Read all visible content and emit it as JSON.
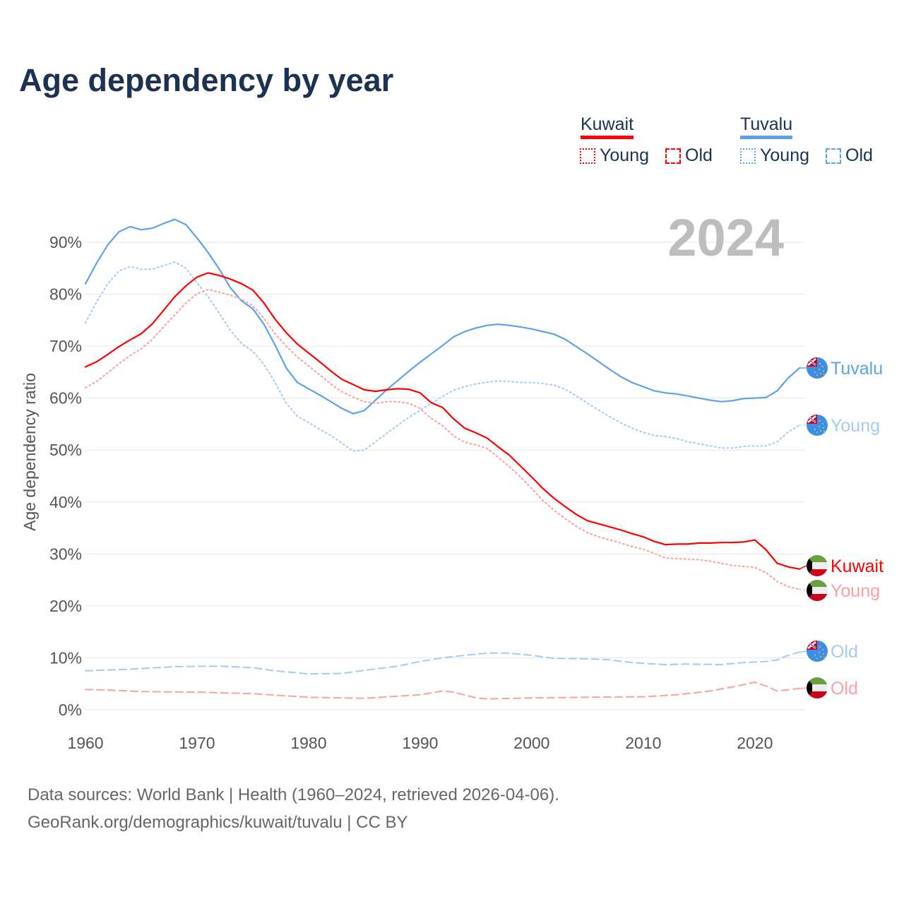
{
  "title": "Age dependency by year",
  "legend": {
    "groups": [
      {
        "name": "Kuwait",
        "color": "#ff0000",
        "items": [
          "Young",
          "Old"
        ]
      },
      {
        "name": "Tuvalu",
        "color": "#5aa3ea",
        "items": [
          "Young",
          "Old"
        ]
      }
    ]
  },
  "year_label": "2024",
  "footer": {
    "line1": "Data sources: World Bank | Health (1960–2024, retrieved 2026-04-06).",
    "line2": "GeoRank.org/demographics/kuwait/tuvalu | CC BY"
  },
  "chart_data": {
    "type": "line",
    "title": "Age dependency by year",
    "xlabel": "",
    "ylabel": "Age dependency ratio",
    "xlim": [
      1960,
      2024
    ],
    "ylim": [
      0,
      95
    ],
    "xticks": [
      "1960",
      "1970",
      "1980",
      "1990",
      "2000",
      "2010",
      "2020"
    ],
    "yticks": [
      "0%",
      "10%",
      "20%",
      "30%",
      "40%",
      "50%",
      "60%",
      "70%",
      "80%",
      "90%"
    ],
    "grid": true,
    "series": [
      {
        "name": "Tuvalu",
        "end_label": "Tuvalu",
        "country": "Tuvalu",
        "style": "solid",
        "color": "#5aa3ea",
        "years": [
          1960,
          1961,
          1962,
          1963,
          1964,
          1965,
          1966,
          1967,
          1968,
          1969,
          1970,
          1971,
          1972,
          1973,
          1974,
          1975,
          1976,
          1977,
          1978,
          1979,
          1980,
          1981,
          1982,
          1983,
          1984,
          1985,
          1986,
          1987,
          1988,
          1989,
          1990,
          1991,
          1992,
          1993,
          1994,
          1995,
          1996,
          1997,
          1998,
          1999,
          2000,
          2001,
          2002,
          2003,
          2004,
          2005,
          2006,
          2007,
          2008,
          2009,
          2010,
          2011,
          2012,
          2013,
          2014,
          2015,
          2016,
          2017,
          2018,
          2019,
          2020,
          2021,
          2022,
          2023,
          2024
        ],
        "values": [
          82,
          86,
          89.5,
          92,
          93,
          92.4,
          92.7,
          93.6,
          94.4,
          93.4,
          90.8,
          88,
          84.8,
          81.2,
          78.7,
          77.2,
          74.2,
          70.2,
          65.8,
          63,
          61.8,
          60.6,
          59.3,
          58,
          57,
          57.6,
          59.6,
          61.6,
          63.4,
          65.2,
          66.9,
          68.5,
          70.1,
          71.8,
          72.8,
          73.5,
          74,
          74.2,
          74,
          73.7,
          73.3,
          72.8,
          72.3,
          71.3,
          69.9,
          68.5,
          67,
          65.5,
          64.1,
          63,
          62.2,
          61.4,
          61,
          60.8,
          60.4,
          60,
          59.6,
          59.3,
          59.5,
          59.9,
          60,
          60.1,
          61.4,
          63.9,
          65.8
        ]
      },
      {
        "name": "Tuvalu Young",
        "end_label": "Young",
        "country": "Tuvalu",
        "style": "dotted",
        "color": "#a6cbf2",
        "years": [
          1960,
          1961,
          1962,
          1963,
          1964,
          1965,
          1966,
          1967,
          1968,
          1969,
          1970,
          1971,
          1972,
          1973,
          1974,
          1975,
          1976,
          1977,
          1978,
          1979,
          1980,
          1981,
          1982,
          1983,
          1984,
          1985,
          1986,
          1987,
          1988,
          1989,
          1990,
          1991,
          1992,
          1993,
          1994,
          1995,
          1996,
          1997,
          1998,
          1999,
          2000,
          2001,
          2002,
          2003,
          2004,
          2005,
          2006,
          2007,
          2008,
          2009,
          2010,
          2011,
          2012,
          2013,
          2014,
          2015,
          2016,
          2017,
          2018,
          2019,
          2020,
          2021,
          2022,
          2023,
          2024
        ],
        "values": [
          74.5,
          78.5,
          82,
          84.5,
          85.3,
          84.8,
          84.8,
          85.5,
          86.2,
          85,
          82.2,
          79.5,
          76.3,
          73,
          70.5,
          69,
          66.5,
          63,
          59,
          56.5,
          55.3,
          54,
          52.8,
          51.3,
          49.8,
          50,
          51.6,
          53.2,
          54.8,
          56.3,
          57.7,
          59,
          60.3,
          61.5,
          62.2,
          62.7,
          63.1,
          63.3,
          63.2,
          63,
          63,
          62.8,
          62.5,
          61.7,
          60.4,
          59,
          57.7,
          56.4,
          55.2,
          54.2,
          53.4,
          52.8,
          52.6,
          52.2,
          51.6,
          51.2,
          50.8,
          50.4,
          50.4,
          50.7,
          50.8,
          50.8,
          51.6,
          53.5,
          54.8
        ]
      },
      {
        "name": "Kuwait",
        "end_label": "Kuwait",
        "country": "Kuwait",
        "style": "solid",
        "color": "#ff0000",
        "years": [
          1960,
          1961,
          1962,
          1963,
          1964,
          1965,
          1966,
          1967,
          1968,
          1969,
          1970,
          1971,
          1972,
          1973,
          1974,
          1975,
          1976,
          1977,
          1978,
          1979,
          1980,
          1981,
          1982,
          1983,
          1984,
          1985,
          1986,
          1987,
          1988,
          1989,
          1990,
          1991,
          1992,
          1993,
          1994,
          1995,
          1996,
          1997,
          1998,
          1999,
          2000,
          2001,
          2002,
          2003,
          2004,
          2005,
          2006,
          2007,
          2008,
          2009,
          2010,
          2011,
          2012,
          2013,
          2014,
          2015,
          2016,
          2017,
          2018,
          2019,
          2020,
          2021,
          2022,
          2023,
          2024
        ],
        "values": [
          66,
          67,
          68.4,
          69.9,
          71.2,
          72.4,
          74.3,
          76.9,
          79.5,
          81.6,
          83.3,
          84.1,
          83.6,
          82.9,
          82,
          80.8,
          78.3,
          75.2,
          72.6,
          70.4,
          68.7,
          67,
          65.2,
          63.6,
          62.6,
          61.6,
          61.3,
          61.6,
          61.8,
          61.7,
          61,
          59.1,
          58.2,
          56,
          54.2,
          53.3,
          52.3,
          50.6,
          49,
          46.9,
          44.8,
          42.6,
          40.7,
          39.1,
          37.6,
          36.4,
          35.8,
          35.2,
          34.6,
          33.9,
          33.3,
          32.4,
          31.8,
          31.9,
          31.9,
          32.1,
          32.1,
          32.2,
          32.2,
          32.3,
          32.7,
          30.8,
          28.2,
          27.5,
          27.1
        ]
      },
      {
        "name": "Kuwait Young",
        "end_label": "Young",
        "country": "Kuwait",
        "style": "dotted",
        "color": "#ff9e9e",
        "years": [
          1960,
          1961,
          1962,
          1963,
          1964,
          1965,
          1966,
          1967,
          1968,
          1969,
          1970,
          1971,
          1972,
          1973,
          1974,
          1975,
          1976,
          1977,
          1978,
          1979,
          1980,
          1981,
          1982,
          1983,
          1984,
          1985,
          1986,
          1987,
          1988,
          1989,
          1990,
          1991,
          1992,
          1993,
          1994,
          1995,
          1996,
          1997,
          1998,
          1999,
          2000,
          2001,
          2002,
          2003,
          2004,
          2005,
          2006,
          2007,
          2008,
          2009,
          2010,
          2011,
          2012,
          2013,
          2014,
          2015,
          2016,
          2017,
          2018,
          2019,
          2020,
          2021,
          2022,
          2023,
          2024
        ],
        "values": [
          62,
          63.2,
          64.9,
          66.6,
          68.2,
          69.5,
          71.3,
          73.7,
          76,
          78.3,
          80.1,
          80.9,
          80.4,
          79.8,
          79,
          77.8,
          75.3,
          72.4,
          70,
          67.9,
          66.2,
          64.5,
          62.7,
          61.2,
          60.2,
          59.3,
          59,
          59.3,
          59.3,
          59,
          58,
          56.1,
          54.7,
          52.7,
          51.5,
          51,
          50.3,
          48.6,
          46.8,
          44.8,
          42.6,
          40.3,
          38.4,
          36.8,
          35.3,
          34.1,
          33.3,
          32.7,
          32.1,
          31.4,
          30.9,
          30.1,
          29.2,
          29.1,
          29,
          28.9,
          28.6,
          28.2,
          27.8,
          27.6,
          27.4,
          26.4,
          24.7,
          23.7,
          23.2
        ]
      },
      {
        "name": "Tuvalu Old",
        "end_label": "Old",
        "country": "Tuvalu",
        "style": "dashed",
        "color": "#a6cbf2",
        "years": [
          1960,
          1964,
          1968,
          1972,
          1975,
          1977,
          1980,
          1983,
          1985,
          1988,
          1990,
          1992,
          1994,
          1996,
          1998,
          2000,
          2002,
          2005,
          2007,
          2009,
          2012,
          2014,
          2017,
          2019,
          2021,
          2022,
          2023,
          2024
        ],
        "values": [
          7.5,
          7.8,
          8.3,
          8.4,
          8.1,
          7.5,
          6.9,
          7.0,
          7.6,
          8.4,
          9.3,
          10,
          10.5,
          10.9,
          10.9,
          10.5,
          9.9,
          9.8,
          9.6,
          9.1,
          8.7,
          8.8,
          8.7,
          9.1,
          9.3,
          9.6,
          10.5,
          11.1
        ]
      },
      {
        "name": "Kuwait Old",
        "end_label": "Old",
        "country": "Kuwait",
        "style": "dashed",
        "color": "#ff9e9e",
        "years": [
          1960,
          1962,
          1965,
          1970,
          1975,
          1980,
          1985,
          1990,
          1992,
          1993,
          1995,
          1996,
          2000,
          2005,
          2010,
          2013,
          2016,
          2018,
          2020,
          2021,
          2022,
          2024
        ],
        "values": [
          3.9,
          3.8,
          3.5,
          3.4,
          3.1,
          2.4,
          2.2,
          2.9,
          3.6,
          3.4,
          2.3,
          2.1,
          2.3,
          2.4,
          2.5,
          2.9,
          3.6,
          4.4,
          5.3,
          4.6,
          3.6,
          4.1
        ]
      }
    ]
  }
}
